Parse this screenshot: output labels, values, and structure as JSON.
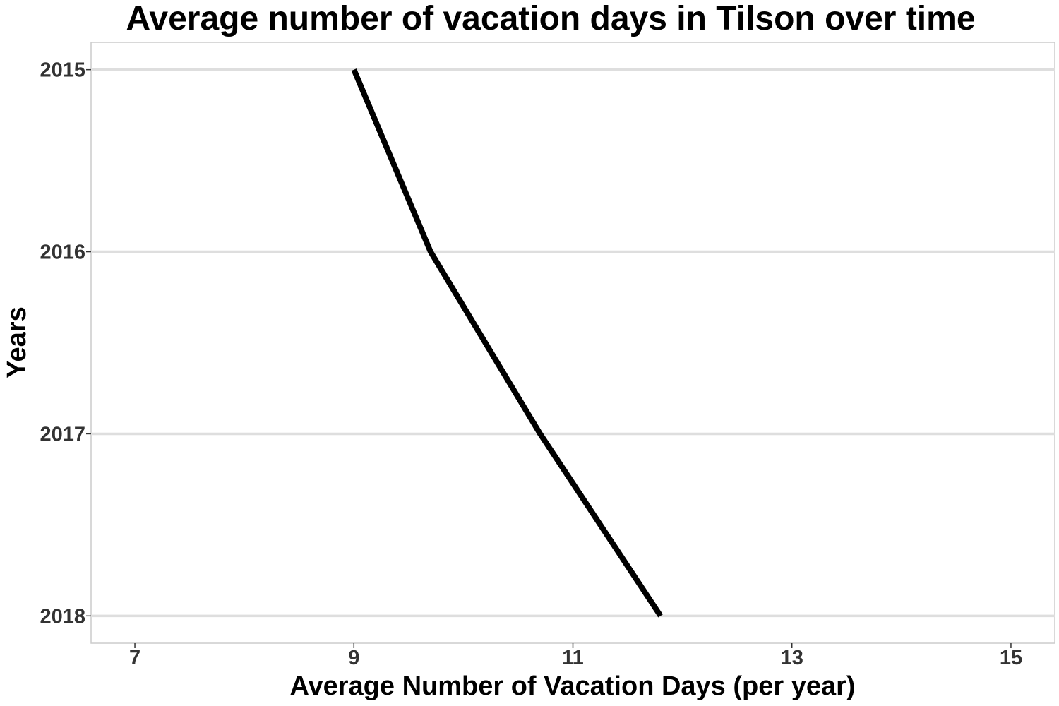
{
  "chart_data": {
    "type": "line",
    "title": "Average number of vacation days in Tilson over time",
    "xlabel": "Average Number of Vacation Days (per year)",
    "ylabel": "Years",
    "xlim": [
      6.6,
      15.4
    ],
    "ylim": [
      2018.15,
      2014.85
    ],
    "x_ticks": [
      "7",
      "9",
      "11",
      "13",
      "15"
    ],
    "y_ticks": [
      "2015",
      "2016",
      "2017",
      "2018"
    ],
    "grid": "horizontal",
    "series": [
      {
        "color": "#000000",
        "points": [
          {
            "x": 9.0,
            "y": 2015
          },
          {
            "x": 9.7,
            "y": 2016
          },
          {
            "x": 10.7,
            "y": 2017
          },
          {
            "x": 11.8,
            "y": 2018
          }
        ]
      }
    ]
  }
}
